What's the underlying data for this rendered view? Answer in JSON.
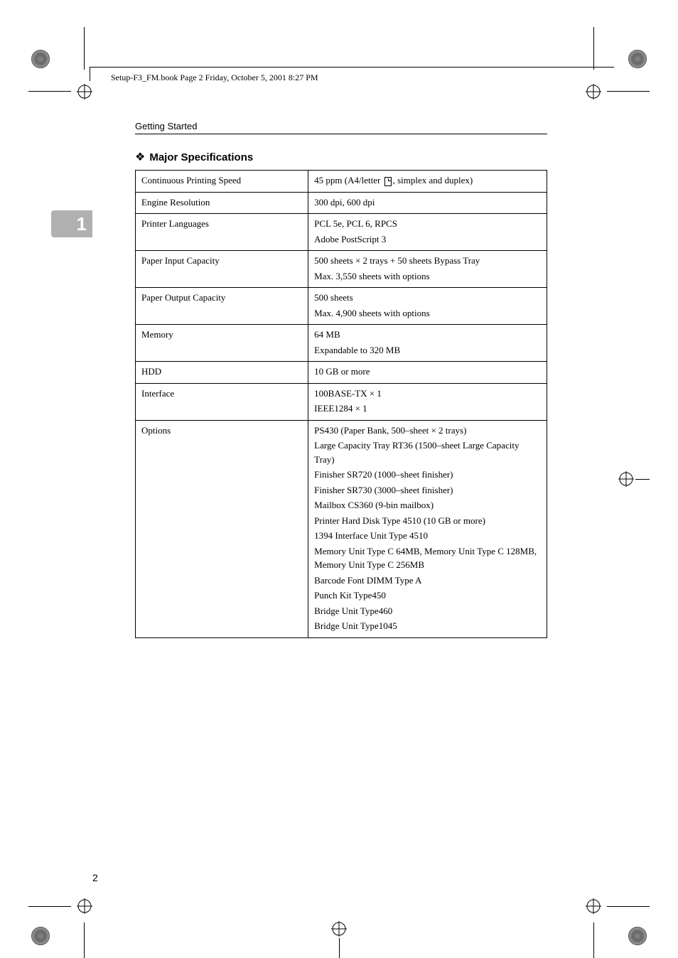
{
  "header": {
    "crop_text": "Setup-F3_FM.book  Page 2  Friday, October 5, 2001  8:27 PM"
  },
  "section_header": "Getting Started",
  "chapter_number": "1",
  "spec_heading": "Major Specifications",
  "page_number": "2",
  "specs": [
    {
      "label": "Continuous Printing Speed",
      "values": [
        "45 ppm (A4/letter ⬚, simplex and duplex)"
      ]
    },
    {
      "label": "Engine Resolution",
      "values": [
        "300 dpi, 600 dpi"
      ]
    },
    {
      "label": "Printer Languages",
      "values": [
        "PCL 5e, PCL 6, RPCS",
        "Adobe PostScript 3"
      ]
    },
    {
      "label": "Paper Input Capacity",
      "values": [
        "500 sheets × 2 trays + 50 sheets Bypass Tray",
        "Max. 3,550 sheets with options"
      ]
    },
    {
      "label": "Paper Output Capacity",
      "values": [
        "500 sheets",
        "Max. 4,900 sheets with options"
      ]
    },
    {
      "label": "Memory",
      "values": [
        "64 MB",
        "Expandable to 320 MB"
      ]
    },
    {
      "label": "HDD",
      "values": [
        "10 GB or more"
      ]
    },
    {
      "label": "Interface",
      "values": [
        "100BASE-TX × 1",
        "IEEE1284 × 1"
      ]
    },
    {
      "label": "Options",
      "values": [
        "PS430 (Paper Bank, 500–sheet × 2 trays)",
        "Large Capacity Tray RT36 (1500–sheet Large Capacity Tray)",
        "Finisher SR720 (1000–sheet finisher)",
        "Finisher SR730 (3000–sheet finisher)",
        "Mailbox CS360 (9-bin mailbox)",
        "Printer Hard Disk Type 4510 (10 GB or more)",
        "1394 Interface Unit Type 4510",
        "Memory Unit Type C 64MB, Memory Unit Type C 128MB, Memory Unit Type C 256MB",
        "Barcode Font DIMM Type A",
        "Punch Kit Type450",
        "Bridge Unit Type460",
        "Bridge Unit Type1045"
      ]
    }
  ],
  "colors": {
    "background": "#ffffff",
    "text": "#000000",
    "tab": "#b0b0b0",
    "tab_text": "#ffffff",
    "border": "#000000"
  }
}
